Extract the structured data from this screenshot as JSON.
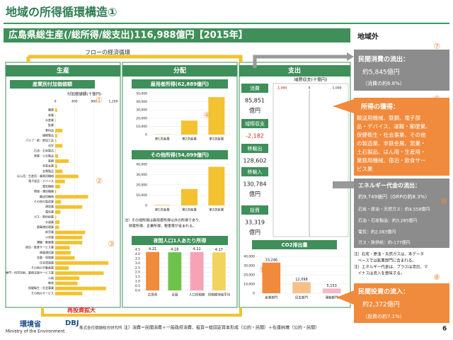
{
  "header": {
    "title": "地域の所得循環構造①",
    "banner": "広島県総生産(/総所得/総支出)116,988億円【2015年】",
    "outside": "地域外",
    "flow": "フローの経済循環",
    "reinvest": "再投資拡大"
  },
  "columns": {
    "production": "生産",
    "distribution": "分配",
    "expenditure": "支出"
  },
  "charts": {
    "production": {
      "title": "産業別付加価値額",
      "axis_label": "付加価値額(十億円)",
      "color": "#f2c230",
      "xlim": [
        0,
        1200
      ],
      "xticks": [
        0,
        400,
        800,
        {
          "value": 1200,
          "label": "1,200"
        }
      ],
      "categories": [
        "農業",
        "林業",
        "水産業",
        "鉱業",
        "食料品",
        "繊維製品",
        "パルプ・紙・紙加工品",
        "化学",
        "石油・石炭製品",
        "窯業・土石製品",
        "鉄鋼",
        "非鉄金属",
        "金属製品",
        "はん用・生産用・業務用機械",
        "電子部品・デバイス",
        "電気機械",
        "情報・通信機器",
        "輸送用機械",
        "その他の製造業",
        "建設業",
        "電気業",
        "ガス・熱供給業",
        "水道業",
        "廃棄物処理業",
        "卸売業",
        "小売業",
        "運輸・郵便業",
        "宿泊・飲食サービス業",
        "情報通信業",
        "金融・保険業",
        "住宅賃貸業",
        "その他の不動産業",
        "専門・科学技術、業務支援サービス業",
        "公務",
        "教育",
        "保健衛生・社会事業",
        "その他のサービス"
      ],
      "values": [
        40,
        5,
        10,
        3,
        150,
        40,
        20,
        150,
        10,
        60,
        280,
        40,
        150,
        480,
        200,
        100,
        20,
        680,
        120,
        560,
        110,
        20,
        90,
        80,
        620,
        560,
        560,
        300,
        320,
        400,
        1100,
        280,
        1000,
        500,
        460,
        1050,
        560
      ]
    },
    "employee": {
      "title": "雇用者所得(62,889億円)",
      "colors": [
        "#f2c230",
        "#f2c230",
        "#f2c230"
      ],
      "ylim": [
        0,
        50000
      ],
      "yticks": [
        0,
        {
          "value": 10000,
          "label": "10,000"
        },
        {
          "value": 20000,
          "label": "20,000"
        },
        {
          "value": 30000,
          "label": "30,000"
        },
        {
          "value": 40000,
          "label": "40,000"
        },
        {
          "value": 50000,
          "label": "50,000"
        }
      ],
      "categories": [
        "第1次産業",
        "第2次産業",
        "第3次産業"
      ],
      "values": [
        300,
        17000,
        45600
      ]
    },
    "other": {
      "title": "その他所得(54,099億円)",
      "colors": [
        "#f2c230",
        "#f2c230",
        "#f2c230"
      ],
      "ylim": [
        0,
        40000
      ],
      "yticks": [
        0,
        {
          "value": 10000,
          "label": "10,000"
        },
        {
          "value": 20000,
          "label": "20,000"
        },
        {
          "value": 30000,
          "label": "30,000"
        },
        {
          "value": 40000,
          "label": "40,000"
        }
      ],
      "categories": [
        "第1次産業",
        "第2次産業",
        "第3次産業"
      ],
      "values": [
        500,
        16000,
        37600
      ]
    },
    "percapita": {
      "title": "夜間人口1人あたり所得",
      "colors": [
        "#f08a3c",
        "#6cc24a",
        "#f5a3b5",
        "#f2d45c"
      ],
      "ylim": [
        0,
        4.5
      ],
      "yticks": [
        {
          "value": 0,
          "label": "0.0"
        },
        0.5,
        {
          "value": 1,
          "label": "1.0"
        },
        1.5,
        {
          "value": 2,
          "label": "2.0"
        },
        2.5,
        {
          "value": 3,
          "label": "3.0"
        },
        3.5,
        {
          "value": 4,
          "label": "4.0"
        },
        4.5
      ],
      "categories": [
        "広島県",
        "全国",
        "人口同規模",
        "同規模地域平均"
      ],
      "values": [
        4.21,
        4.18,
        4.21,
        4.17
      ]
    },
    "co2": {
      "title": "CO2排出量",
      "colors": [
        "#f08a3c",
        "#f7c08a",
        "#f5b8c4"
      ],
      "ylim": [
        0,
        40000
      ],
      "yticks": [
        0,
        {
          "value": 10000,
          "label": "10,000"
        },
        {
          "value": 20000,
          "label": "20,000"
        },
        {
          "value": 30000,
          "label": "30,000"
        },
        {
          "value": 40000,
          "label": "40,000"
        }
      ],
      "categories": [
        "産業部門",
        "民生部門",
        "運輸部門"
      ],
      "values": [
        33246,
        12098,
        5153
      ],
      "value_labels": [
        "33,246",
        "12,098",
        "5,153"
      ]
    }
  },
  "distribution_note": [
    "注）その他所得は雇用者所得以外の所得であり、",
    "財産所得、企業所得、税金等が含まれる。"
  ],
  "expenditure": {
    "consumption": {
      "label": "消費",
      "value": "85,851",
      "unit": "億円"
    },
    "balance": {
      "label": "域際収支",
      "value": "-2,182"
    },
    "exports": {
      "label": "移輸出",
      "value": "128,602"
    },
    "imports": {
      "label": "移輸入",
      "value": "130,784",
      "unit": "億円"
    },
    "investment": {
      "label": "投資",
      "value": "33,319",
      "unit": "億円"
    },
    "balance_chart": {
      "title": "域際収支(十億円)",
      "axis": [
        "-1,000",
        "0",
        "1,000"
      ]
    }
  },
  "outside": {
    "consumption_outflow": [
      "民間消費の流出：",
      "約5,845億円",
      "（消費の約6.8%）"
    ],
    "income_gain": {
      "title": "所得の獲得：",
      "lines": [
        "輸送用機械、鉄鋼、電子部",
        "品・デバイス、運輸・郵便業、",
        "保健衛生・社会事業、その他",
        "の製造業、非鉄金属、窯業・",
        "土石製品、はん用・生産用・",
        "業務用機械、宿泊・飲食サー",
        "ビス業"
      ]
    },
    "energy": [
      "エネルギー代金の流出：",
      "約9,749億円（GRPの約8.3%）",
      "石炭・原油・天然ガス：約4,558億円",
      "石油・石炭製品：約3,285億円",
      "電気：約2,083億円",
      "ガス・熱供給：約-177億円"
    ],
    "energy_notes": [
      "注）石炭・原油・天然ガスは、本データ",
      "　ベースでは鉱業部門に含まれる。",
      "注）エネルギー代金は、プラスは流出、マ",
      "　イナスは流入を意味する。"
    ],
    "investment_inflow": [
      "民間投資の流入：",
      "約2,372億円",
      "（投資の約7.1%）"
    ]
  },
  "markers": [
    "①",
    "②",
    "③",
    "④",
    "⑤",
    "⑥",
    "⑦",
    "⑧",
    "⑨⑪",
    "⑩",
    "⑫"
  ],
  "footer": {
    "ministry": "環境省",
    "ministry_en": "Ministry of the Environment",
    "dbj": "DBJ",
    "company": "株式会社価値総合研究所",
    "note": "注）消費＝民間消費＋一般政府消費、投資＝総固定資本形成（公的・民間）＋在庫純増（公的・民間）",
    "page": "6"
  }
}
